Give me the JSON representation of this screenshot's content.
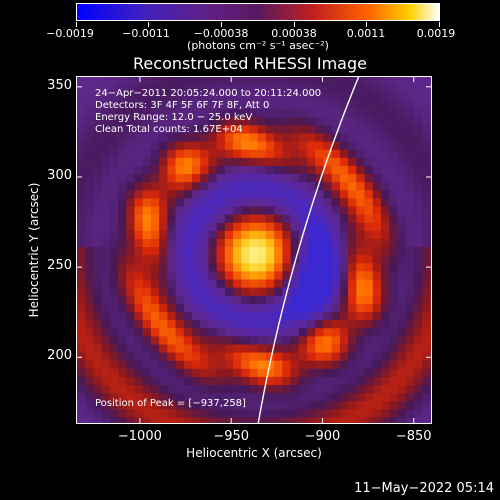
{
  "chart_data": {
    "type": "heatmap",
    "title": "Reconstructed RHESSI Image",
    "xlabel": "Heliocentric X (arcsec)",
    "ylabel": "Heliocentric Y (arcsec)",
    "xlim": [
      -1035,
      -840
    ],
    "ylim": [
      163,
      356
    ],
    "x_ticks": [
      -1000,
      -950,
      -900,
      -850
    ],
    "x_tick_labels": [
      "−1000",
      "−950",
      "−900",
      "−850"
    ],
    "y_ticks": [
      200,
      250,
      300,
      350
    ],
    "y_tick_labels": [
      "200",
      "250",
      "300",
      "350"
    ],
    "colorbar": {
      "ticks": [
        -0.0019,
        -0.0011,
        -0.00038,
        0.00038,
        0.0011,
        0.0019
      ],
      "tick_labels": [
        "−0.0019",
        "−0.0011",
        "−0.00038",
        "0.00038",
        "0.0011",
        "0.0019"
      ],
      "range": [
        -0.0019,
        0.0019
      ],
      "unit_label": "(photons cm⁻² s⁻¹ asec⁻²)"
    },
    "annotations": {
      "time_range": "24−Apr−2011 20:05:24.000 to 20:11:24.000",
      "detectors": "Detectors: 3F 4F 5F 6F 7F 8F, Att 0",
      "energy": "Energy Range: 12.0 − 25.0 keV",
      "clean": "Clean     Total counts: 1.67E+04",
      "peak": "Position of Peak = [−937,258]"
    },
    "peak": {
      "x": -937,
      "y": 258
    },
    "limb": true
  },
  "footer": {
    "timestamp": "11−May−2022 05:14"
  }
}
